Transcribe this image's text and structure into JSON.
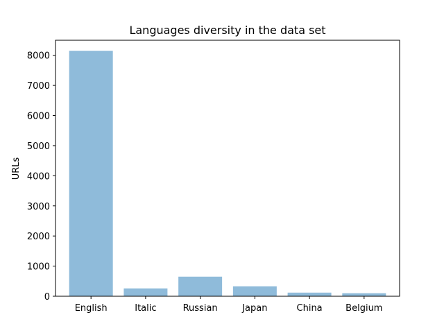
{
  "chart_data": {
    "type": "bar",
    "title": "Languages diversity in the data set",
    "xlabel": "",
    "ylabel": "URLs",
    "categories": [
      "English",
      "Italic",
      "Russian",
      "Japan",
      "China",
      "Belgium"
    ],
    "values": [
      8150,
      260,
      650,
      330,
      120,
      100
    ],
    "ylim": [
      0,
      8500
    ],
    "yticks": [
      0,
      1000,
      2000,
      3000,
      4000,
      5000,
      6000,
      7000,
      8000
    ],
    "bar_color": "#8fbbda",
    "grid": false,
    "legend": "none"
  }
}
